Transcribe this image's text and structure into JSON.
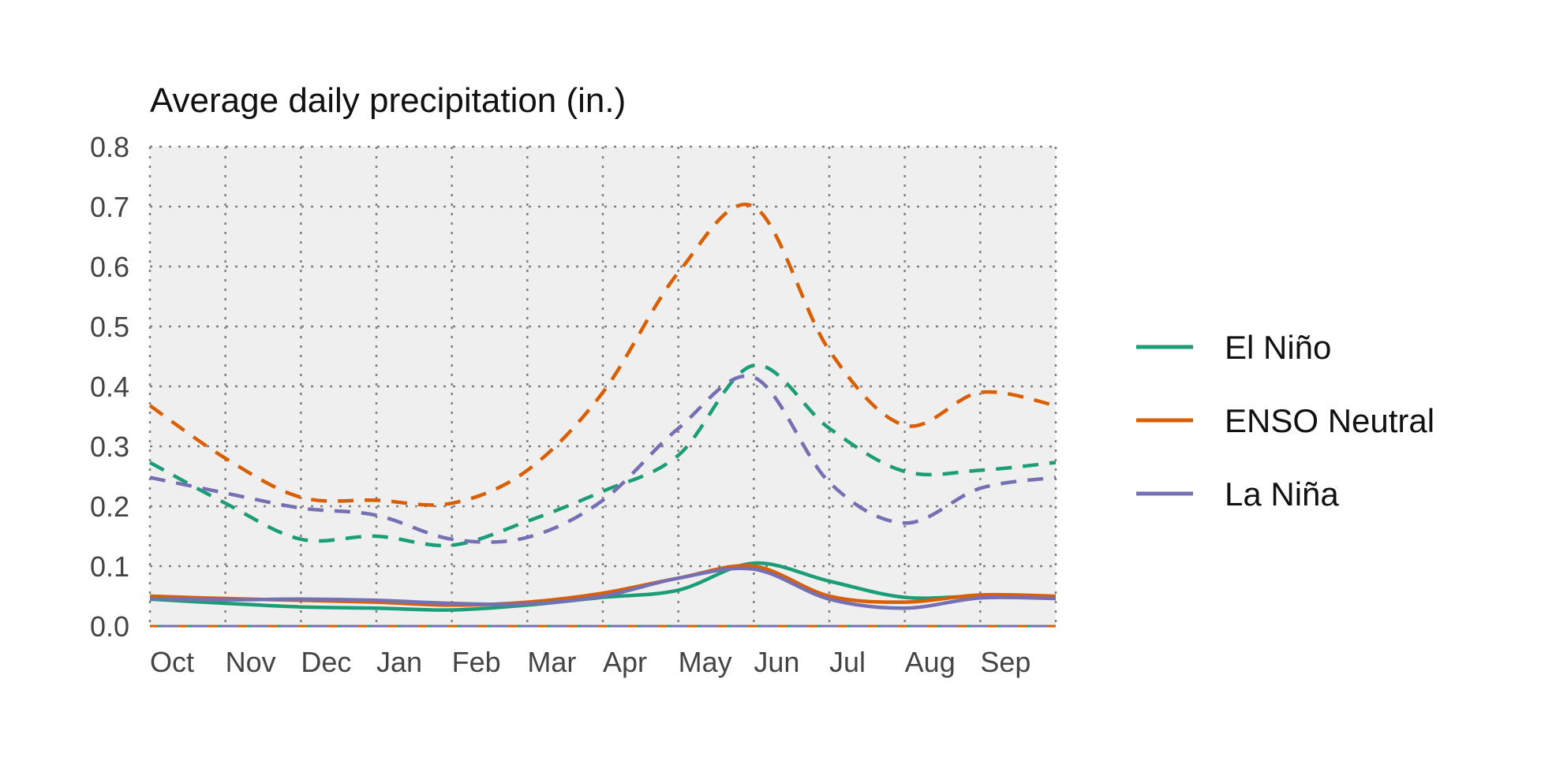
{
  "chart_data": {
    "type": "line",
    "title": "Average daily precipitation (in.)",
    "xlabel": "",
    "ylabel": "",
    "ylim": [
      0,
      0.8
    ],
    "yticks": [
      "0.0",
      "0.1",
      "0.2",
      "0.3",
      "0.4",
      "0.5",
      "0.6",
      "0.7",
      "0.8"
    ],
    "categories": [
      "Oct",
      "Nov",
      "Dec",
      "Jan",
      "Feb",
      "Mar",
      "Apr",
      "May",
      "Jun",
      "Jul",
      "Aug",
      "Sep"
    ],
    "grid": true,
    "legend_position": "right",
    "series": [
      {
        "name": "El Niño",
        "color": "#1b9e77",
        "solid_values": [
          0.045,
          0.038,
          0.032,
          0.03,
          0.027,
          0.035,
          0.048,
          0.06,
          0.105,
          0.075,
          0.048,
          0.05,
          0.048
        ],
        "dashed_values": [
          0.273,
          0.205,
          0.145,
          0.15,
          0.135,
          0.175,
          0.225,
          0.285,
          0.435,
          0.33,
          0.258,
          0.26,
          0.273
        ]
      },
      {
        "name": "ENSO Neutral",
        "color": "#d95f02",
        "solid_values": [
          0.05,
          0.046,
          0.043,
          0.04,
          0.035,
          0.04,
          0.055,
          0.08,
          0.1,
          0.05,
          0.04,
          0.052,
          0.05
        ],
        "dashed_values": [
          0.368,
          0.28,
          0.215,
          0.21,
          0.205,
          0.26,
          0.39,
          0.59,
          0.7,
          0.46,
          0.335,
          0.39,
          0.368
        ]
      },
      {
        "name": "La Niña",
        "color": "#7570b3",
        "solid_values": [
          0.046,
          0.044,
          0.045,
          0.043,
          0.038,
          0.037,
          0.05,
          0.08,
          0.095,
          0.045,
          0.03,
          0.047,
          0.046
        ],
        "dashed_values": [
          0.248,
          0.222,
          0.197,
          0.185,
          0.145,
          0.148,
          0.21,
          0.33,
          0.415,
          0.24,
          0.172,
          0.23,
          0.248
        ]
      }
    ]
  }
}
